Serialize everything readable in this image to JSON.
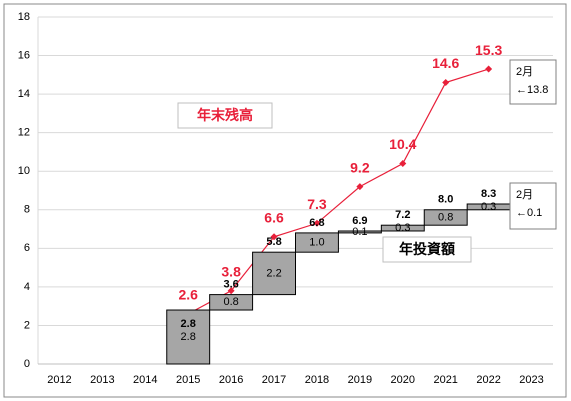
{
  "chart_data": {
    "type": "waterfall_line",
    "categories": [
      "2012",
      "2013",
      "2014",
      "2015",
      "2016",
      "2017",
      "2018",
      "2019",
      "2020",
      "2021",
      "2022",
      "2023"
    ],
    "ylim": [
      0,
      18
    ],
    "yticks": [
      0,
      2,
      4,
      6,
      8,
      10,
      12,
      14,
      16,
      18
    ],
    "grid": true,
    "series": [
      {
        "name": "年末残高",
        "kind": "line",
        "color": "#e8203a",
        "values": [
          null,
          null,
          null,
          2.6,
          3.8,
          6.6,
          7.3,
          9.2,
          10.4,
          14.6,
          15.3,
          null
        ]
      },
      {
        "name": "年投資額",
        "kind": "waterfall",
        "color": "#a6a6a6",
        "values": [
          null,
          null,
          null,
          2.8,
          0.8,
          2.2,
          1.0,
          0.1,
          0.3,
          0.8,
          0.3,
          null
        ],
        "value_labels": [
          null,
          null,
          null,
          "2.8",
          "0.8",
          "2.2",
          "1.0",
          "0.1",
          "0.3",
          "0.8",
          "0.3",
          null
        ],
        "totals": [
          null,
          null,
          null,
          2.8,
          3.6,
          5.8,
          6.8,
          6.9,
          7.2,
          8.0,
          8.3,
          null
        ],
        "total_labels": [
          null,
          null,
          null,
          "2.8",
          "3.6",
          "5.8",
          "6.8",
          "6.9",
          "7.2",
          "8.0",
          "8.3",
          null
        ]
      }
    ],
    "annotations": [
      {
        "lines": [
          "2月",
          "←13.8"
        ]
      },
      {
        "lines": [
          "2月",
          "←0.1"
        ]
      }
    ]
  }
}
